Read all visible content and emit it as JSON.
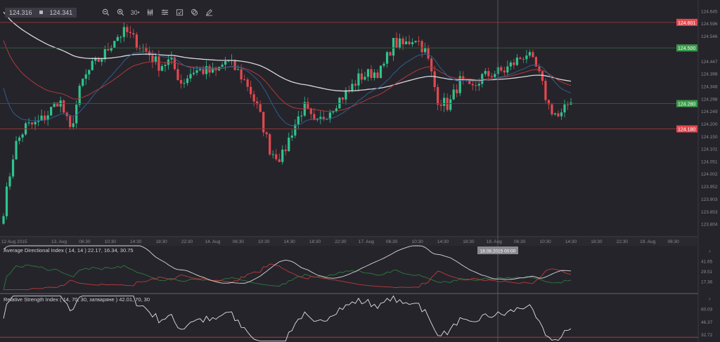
{
  "toolbar": {
    "bid": "124.316",
    "ask": "124.341",
    "timeframe": "30",
    "icons": [
      "zoom-out-icon",
      "zoom-in-icon",
      "timeframe-icon",
      "candle-type-icon",
      "settings-icon",
      "calendar-icon",
      "layers-icon",
      "pencil-icon"
    ]
  },
  "colors": {
    "background": "#25242b",
    "up": "#2fc48d",
    "down": "#e3484f",
    "ma_slow": "#d8d8dc",
    "ma_mid": "#b03a3a",
    "ma_fast": "#2f5f8f",
    "tag_red": "#e3484f",
    "tag_green": "#3a9a4a"
  },
  "price_levels": [
    {
      "value": "124.601",
      "color": "red"
    },
    {
      "value": "124.500",
      "color": "green"
    },
    {
      "value": "124.280",
      "color": "green"
    },
    {
      "value": "124.180",
      "color": "red"
    }
  ],
  "crosshair_label": "18.08.2015 00:00",
  "indicators": {
    "adx_label": "Average Directional Index ( 14, 14 ) 22.17, 16.34, 30.75",
    "rsi_label": "Relative Strength Index ( 14, 70, 30, затваряне ) 42.01, 70, 30"
  },
  "chart_data": {
    "type": "candlestick",
    "symbol_quote": [
      "124.316",
      "124.341"
    ],
    "y_ticks": [
      "124.645",
      "124.596",
      "124.546",
      "124.447",
      "124.398",
      "124.348",
      "124.298",
      "124.249",
      "124.200",
      "124.150",
      "124.101",
      "124.051",
      "124.002",
      "123.952",
      "123.903",
      "123.853",
      "123.804"
    ],
    "ylim": [
      123.804,
      124.645
    ],
    "x_ticks": [
      "12 Aug 2015",
      "13. Aug",
      "06:30",
      "10:30",
      "14:30",
      "18:30",
      "22:30",
      "14. Aug",
      "06:30",
      "10:30",
      "14:30",
      "18:30",
      "22:30",
      "17. Aug",
      "06:30",
      "10:30",
      "14:30",
      "18:30",
      "18. Aug",
      "06:30",
      "10:30",
      "14:30",
      "18:30",
      "22:30",
      "19. Aug",
      "06:30"
    ],
    "close_path": [
      123.86,
      124.11,
      124.19,
      124.2,
      124.24,
      124.3,
      124.17,
      124.36,
      124.43,
      124.47,
      124.54,
      124.565,
      124.52,
      124.48,
      124.43,
      124.45,
      124.36,
      124.41,
      124.41,
      124.4,
      124.45,
      124.41,
      124.35,
      124.24,
      124.09,
      124.065,
      124.18,
      124.27,
      124.19,
      124.24,
      124.29,
      124.33,
      124.385,
      124.4,
      124.41,
      124.52,
      124.51,
      124.545,
      124.48,
      124.3,
      124.27,
      124.37,
      124.33,
      124.385,
      124.4,
      124.41,
      124.445,
      124.48,
      124.41,
      124.27,
      124.22,
      124.3
    ],
    "adx_ticks": [
      "41.65",
      "29.51",
      "17.36"
    ],
    "rsi_ticks": [
      "60.03",
      "46.37",
      "32.72"
    ]
  }
}
